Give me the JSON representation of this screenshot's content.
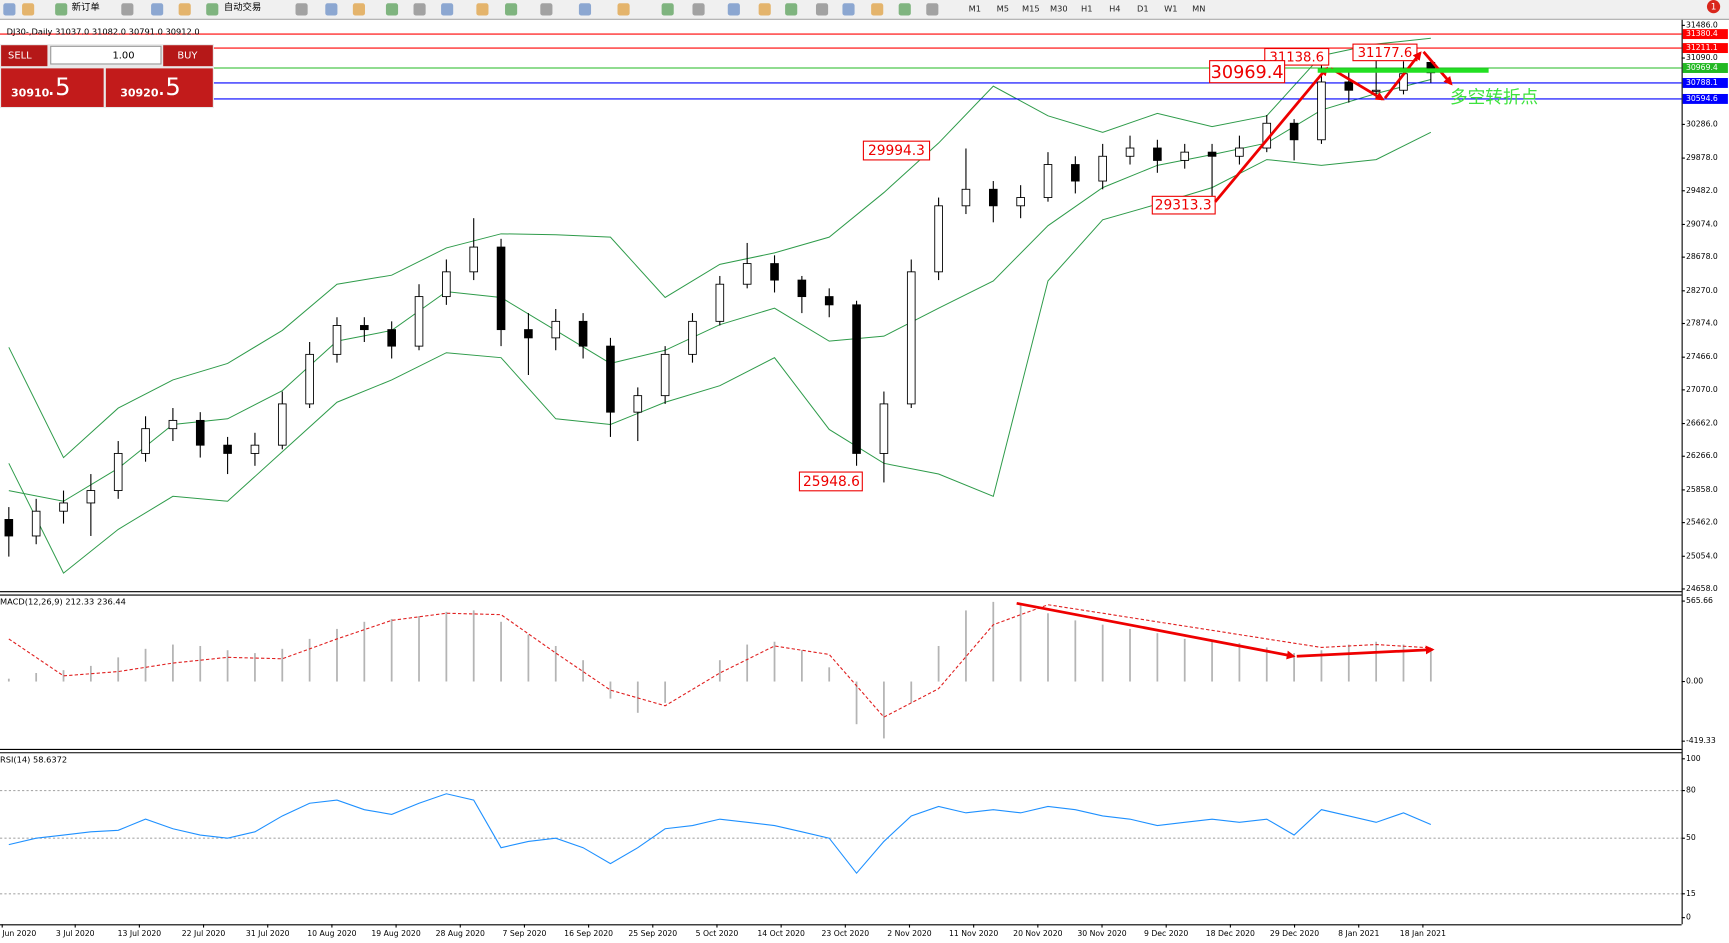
{
  "toolbar": {
    "new_order": "新订单",
    "auto_trading": "自动交易",
    "timeframes": [
      "M1",
      "M5",
      "M15",
      "M30",
      "H1",
      "H4",
      "D1",
      "W1",
      "MN"
    ],
    "badge": "1"
  },
  "trade_panel": {
    "sell": "SELL",
    "buy": "BUY",
    "lot": "1.00",
    "sell_price": "30910",
    "sell_pips": ".5",
    "buy_price": "30920",
    "buy_pips": ".5"
  },
  "annotations": [
    "31138.6",
    "31177.6",
    "30969.4",
    "29994.3",
    "29313.3",
    "25948.6",
    "多空转折点"
  ],
  "chart_data": [
    {
      "type": "candlestick",
      "title": "DJ30-,Daily  31037.0 31082.0 30791.0 30912.0",
      "candles": [
        [
          25500,
          25650,
          25050,
          25300
        ],
        [
          25300,
          25750,
          25200,
          25600
        ],
        [
          25600,
          25850,
          25450,
          25700
        ],
        [
          25700,
          26050,
          25300,
          25850
        ],
        [
          25850,
          26450,
          25750,
          26300
        ],
        [
          26300,
          26750,
          26200,
          26600
        ],
        [
          26600,
          26850,
          26450,
          26700
        ],
        [
          26700,
          26800,
          26250,
          26400
        ],
        [
          26400,
          26500,
          26050,
          26300
        ],
        [
          26300,
          26550,
          26150,
          26400
        ],
        [
          26400,
          27050,
          26350,
          26900
        ],
        [
          26900,
          27650,
          26850,
          27500
        ],
        [
          27500,
          27950,
          27400,
          27850
        ],
        [
          27850,
          27950,
          27650,
          27800
        ],
        [
          27800,
          27900,
          27450,
          27600
        ],
        [
          27600,
          28350,
          27550,
          28200
        ],
        [
          28200,
          28650,
          28100,
          28500
        ],
        [
          28500,
          29150,
          28400,
          28800
        ],
        [
          28800,
          28900,
          27600,
          27800
        ],
        [
          27800,
          28000,
          27250,
          27700
        ],
        [
          27700,
          28050,
          27550,
          27900
        ],
        [
          27900,
          28000,
          27450,
          27600
        ],
        [
          27600,
          27700,
          26500,
          26800
        ],
        [
          26800,
          27100,
          26450,
          27000
        ],
        [
          27000,
          27600,
          26900,
          27500
        ],
        [
          27500,
          28000,
          27400,
          27900
        ],
        [
          27900,
          28450,
          27850,
          28350
        ],
        [
          28350,
          28850,
          28300,
          28600
        ],
        [
          28600,
          28700,
          28250,
          28400
        ],
        [
          28400,
          28450,
          28000,
          28200
        ],
        [
          28200,
          28300,
          27950,
          28100
        ],
        [
          28100,
          28150,
          26150,
          26300
        ],
        [
          26300,
          27050,
          25948.6,
          26900
        ],
        [
          26900,
          28650,
          26850,
          28500
        ],
        [
          28500,
          29400,
          28400,
          29300
        ],
        [
          29300,
          29994.3,
          29200,
          29500
        ],
        [
          29500,
          29600,
          29100,
          29300
        ],
        [
          29300,
          29550,
          29150,
          29400
        ],
        [
          29400,
          29950,
          29350,
          29800
        ],
        [
          29800,
          29900,
          29450,
          29600
        ],
        [
          29600,
          30050,
          29500,
          29900
        ],
        [
          29900,
          30150,
          29800,
          30000
        ],
        [
          30000,
          30100,
          29700,
          29850
        ],
        [
          29850,
          30050,
          29750,
          29950
        ],
        [
          29950,
          30050,
          29313.3,
          29900
        ],
        [
          29900,
          30150,
          29800,
          30000
        ],
        [
          30000,
          30400,
          29950,
          30300
        ],
        [
          30300,
          30350,
          29850,
          30100
        ],
        [
          30100,
          31138.6,
          30050,
          30800
        ],
        [
          30800,
          30950,
          30550,
          30700
        ],
        [
          30700,
          31177.6,
          30600,
          30700
        ],
        [
          30700,
          31050,
          30650,
          30900
        ],
        [
          31037,
          31082,
          30791,
          30912
        ]
      ],
      "bollinger": {
        "color": "#2e9b4a",
        "upper": [
          27586,
          26250,
          26850,
          27190,
          27390,
          27790,
          28350,
          28460,
          28790,
          28960,
          28950,
          28920,
          28190,
          28590,
          28730,
          28920,
          29460,
          30060,
          30750,
          30390,
          30190,
          30420,
          30260,
          30390,
          31120,
          31260,
          31330
        ],
        "middle": [
          25850,
          25720,
          26120,
          26650,
          26720,
          27060,
          27660,
          27790,
          28260,
          28190,
          27790,
          27390,
          27550,
          27860,
          28060,
          27660,
          27720,
          28060,
          28390,
          29060,
          29520,
          29790,
          29920,
          30060,
          30460,
          30660,
          30830
        ],
        "lower": [
          26180,
          24850,
          25380,
          25780,
          25720,
          26320,
          26920,
          27190,
          27520,
          27460,
          26720,
          26650,
          26920,
          27120,
          27460,
          26590,
          26180,
          26050,
          25780,
          28390,
          29130,
          29320,
          29520,
          29860,
          29790,
          29860,
          30190
        ]
      },
      "ylim": [
        24658,
        31486
      ],
      "yticks": [
        {
          "value": 31486,
          "label": "31486.0"
        },
        {
          "value": 31090,
          "label": "31090.0"
        },
        {
          "value": 30286,
          "label": "30286.0"
        },
        {
          "value": 29878,
          "label": "29878.0"
        },
        {
          "value": 29482,
          "label": "29482.0"
        },
        {
          "value": 29074,
          "label": "29074.0"
        },
        {
          "value": 28678,
          "label": "28678.0"
        },
        {
          "value": 28270,
          "label": "28270.0"
        },
        {
          "value": 27874,
          "label": "27874.0"
        },
        {
          "value": 27466,
          "label": "27466.0"
        },
        {
          "value": 27070,
          "label": "27070.0"
        },
        {
          "value": 26662,
          "label": "26662.0"
        },
        {
          "value": 26266,
          "label": "26266.0"
        },
        {
          "value": 25858,
          "label": "25858.0"
        },
        {
          "value": 25462,
          "label": "25462.0"
        },
        {
          "value": 25054,
          "label": "25054.0"
        },
        {
          "value": 24658,
          "label": "24658.0"
        }
      ],
      "levels": [
        {
          "value": 31380.4,
          "color": "#ff0000"
        },
        {
          "value": 31211.1,
          "color": "#ff0000"
        },
        {
          "value": 30969.4,
          "color": "#22b822"
        },
        {
          "value": 30788.1,
          "color": "#0000ff"
        },
        {
          "value": 30594.6,
          "color": "#0000ff"
        }
      ],
      "x_labels": [
        "Jun 2020",
        "3 Jul 2020",
        "13 Jul 2020",
        "22 Jul 2020",
        "31 Jul 2020",
        "10 Aug 2020",
        "19 Aug 2020",
        "28 Aug 2020",
        "7 Sep 2020",
        "16 Sep 2020",
        "25 Sep 2020",
        "5 Oct 2020",
        "14 Oct 2020",
        "23 Oct 2020",
        "2 Nov 2020",
        "11 Nov 2020",
        "20 Nov 2020",
        "30 Nov 2020",
        "9 Dec 2020",
        "18 Dec 2020",
        "29 Dec 2020",
        "8 Jan 2021",
        "18 Jan 2021"
      ]
    },
    {
      "type": "macd",
      "title": "MACD(12,26,9) 212.33 236.44",
      "histogram": [
        20,
        60,
        80,
        110,
        170,
        230,
        260,
        250,
        220,
        200,
        230,
        300,
        370,
        420,
        440,
        460,
        490,
        500,
        420,
        330,
        250,
        150,
        -120,
        -220,
        -150,
        0,
        150,
        260,
        280,
        220,
        100,
        -300,
        -400,
        -150,
        250,
        500,
        560,
        540,
        480,
        430,
        400,
        370,
        340,
        300,
        280,
        270,
        240,
        200,
        220,
        260,
        280,
        260,
        212.33
      ],
      "signal": [
        300,
        40,
        70,
        130,
        170,
        160,
        300,
        430,
        480,
        470,
        200,
        -60,
        -170,
        60,
        250,
        190,
        -250,
        -50,
        400,
        540,
        480,
        420,
        360,
        300,
        240,
        260,
        236.44
      ],
      "histogram_color": "#b4b4b4",
      "signal_color": "#e02020",
      "ylim": [
        -419.33,
        565.66
      ],
      "yticks": [
        565.66,
        {
          "value": 0,
          "label": "0.00"
        },
        -419.33
      ]
    },
    {
      "type": "line",
      "title": "RSI(14) 58.6372",
      "values": [
        46,
        50,
        52,
        54,
        55,
        62,
        56,
        52,
        50,
        54,
        64,
        72,
        74,
        68,
        65,
        72,
        78,
        74,
        44,
        48,
        50,
        44,
        34,
        44,
        56,
        58,
        62,
        60,
        58,
        54,
        50,
        28,
        48,
        64,
        70,
        66,
        68,
        66,
        70,
        68,
        64,
        62,
        58,
        60,
        62,
        60,
        62,
        52,
        68,
        64,
        60,
        66,
        58.6372
      ],
      "color": "#1e90ff",
      "ylim": [
        0,
        100
      ],
      "yticks": [
        100,
        80,
        50,
        15,
        0
      ]
    }
  ]
}
